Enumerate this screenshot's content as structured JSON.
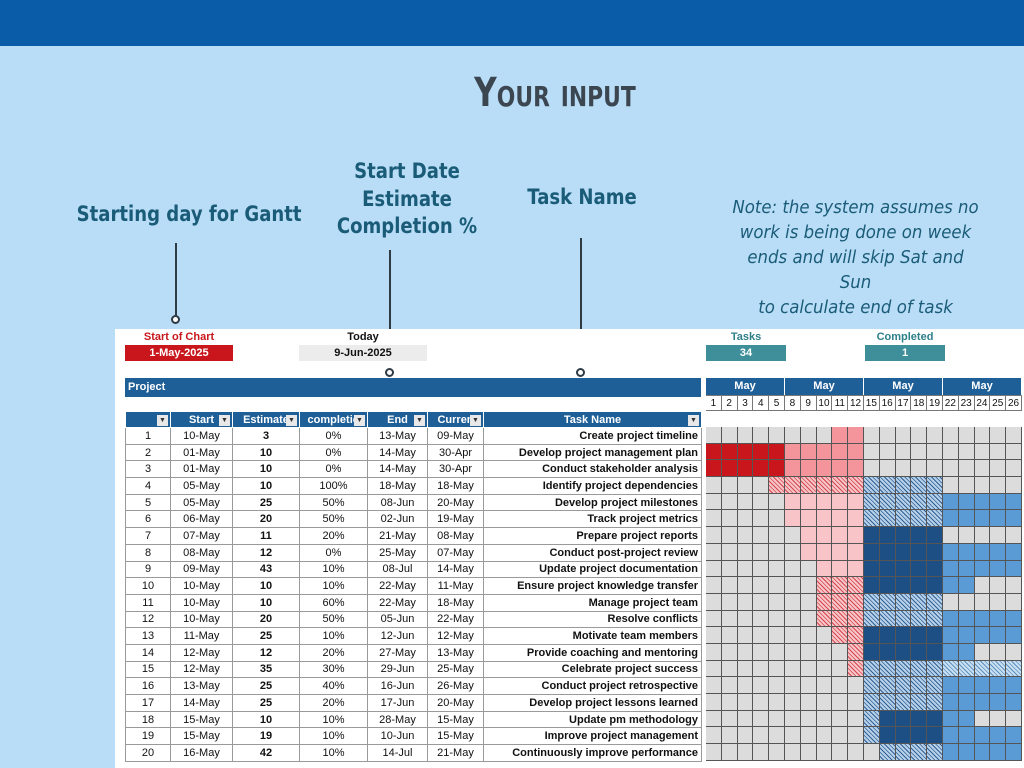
{
  "hero": {
    "title": "Your input"
  },
  "callouts": {
    "starting_day": "Starting day for Gantt",
    "start_date": "Start Date",
    "estimate": "Estimate",
    "completion": "Completion %",
    "task_name": "Task Name",
    "note_lines": [
      "Note: the system assumes no",
      "work is being done on week",
      "ends and will skip Sat and Sun",
      "to calculate end of task"
    ]
  },
  "sheet": {
    "start_of_chart_label": "Start of Chart",
    "start_of_chart_value": "1-May-2025",
    "today_label": "Today",
    "today_value": "9-Jun-2025",
    "tasks_label": "Tasks",
    "tasks_value": "34",
    "completed_label": "Completed",
    "completed_value": "1",
    "project_label": "Project",
    "columns": [
      "",
      "Start",
      "Estimate",
      "completio",
      "End",
      "Curren",
      "Task Name"
    ],
    "rows": [
      [
        "1",
        "10-May",
        "3",
        "0%",
        "13-May",
        "09-May",
        "Create project timeline"
      ],
      [
        "2",
        "01-May",
        "10",
        "0%",
        "14-May",
        "30-Apr",
        "Develop project management plan"
      ],
      [
        "3",
        "01-May",
        "10",
        "0%",
        "14-May",
        "30-Apr",
        "Conduct stakeholder analysis"
      ],
      [
        "4",
        "05-May",
        "10",
        "100%",
        "18-May",
        "18-May",
        "Identify project dependencies"
      ],
      [
        "5",
        "05-May",
        "25",
        "50%",
        "08-Jun",
        "20-May",
        "Develop project milestones"
      ],
      [
        "6",
        "06-May",
        "20",
        "50%",
        "02-Jun",
        "19-May",
        "Track project metrics"
      ],
      [
        "7",
        "07-May",
        "11",
        "20%",
        "21-May",
        "08-May",
        "Prepare project reports"
      ],
      [
        "8",
        "08-May",
        "12",
        "0%",
        "25-May",
        "07-May",
        "Conduct post-project review"
      ],
      [
        "9",
        "09-May",
        "43",
        "10%",
        "08-Jul",
        "14-May",
        "Update project documentation"
      ],
      [
        "10",
        "10-May",
        "10",
        "10%",
        "22-May",
        "11-May",
        "Ensure project knowledge transfer"
      ],
      [
        "11",
        "10-May",
        "10",
        "60%",
        "22-May",
        "18-May",
        "Manage project team"
      ],
      [
        "12",
        "10-May",
        "20",
        "50%",
        "05-Jun",
        "22-May",
        "Resolve conflicts"
      ],
      [
        "13",
        "11-May",
        "25",
        "10%",
        "12-Jun",
        "12-May",
        "Motivate team members"
      ],
      [
        "14",
        "12-May",
        "12",
        "20%",
        "27-May",
        "13-May",
        "Provide coaching and mentoring"
      ],
      [
        "15",
        "12-May",
        "35",
        "30%",
        "29-Jun",
        "25-May",
        "Celebrate project success"
      ],
      [
        "16",
        "13-May",
        "25",
        "40%",
        "16-Jun",
        "26-May",
        "Conduct project retrospective"
      ],
      [
        "17",
        "14-May",
        "25",
        "20%",
        "17-Jun",
        "20-May",
        "Develop project lessons learned"
      ],
      [
        "18",
        "15-May",
        "10",
        "10%",
        "28-May",
        "15-May",
        "Update pm methodology"
      ],
      [
        "19",
        "15-May",
        "19",
        "10%",
        "10-Jun",
        "15-May",
        "Improve project management"
      ],
      [
        "20",
        "16-May",
        "42",
        "10%",
        "14-Jul",
        "21-May",
        "Continuously improve performance"
      ]
    ],
    "gantt": {
      "months": [
        "May",
        "May",
        "May",
        "May"
      ],
      "days": [
        "1",
        "2",
        "3",
        "4",
        "5",
        "8",
        "9",
        "10",
        "11",
        "12",
        "15",
        "16",
        "17",
        "18",
        "19",
        "22",
        "23",
        "24",
        "25",
        "26"
      ],
      "rows": [
        "eeeeeeeePPeeeeeeeeee",
        "RRRRRPPPPPeeeeeeeeee",
        "RRRRRPPPPPeeeeeeeeee",
        "eeeeHHHHHHSSSSSeeeee",
        "eeeeeLLLLLSSSSSBBBBB",
        "eeeeeLLLLLSSSSSBBBBB",
        "eeeeeeLLLLNNNNNeeeee",
        "eeeeeeLLLLNNNNNBBBBB",
        "eeeeeeeLLLNNNNNBBBBB",
        "eeeeeeeHHHNNNNNBBeee",
        "eeeeeeeHHHSSSSSeeeee",
        "eeeeeeeHHHSSSSSBBBBB",
        "eeeeeeeeHHNNNNNBBBBB",
        "eeeeeeeeeHNNNNNBBeee",
        "eeeeeeeeeHSSSSSTTTTT",
        "eeeeeeeeeeSSSSSBBBBB",
        "eeeeeeeeeeSSSSSBBBBB",
        "eeeeeeeeeeSNNNNBBeee",
        "eeeeeeeeeeSNNNNBBBBB",
        "eeeeeeeeeeeSSSSBBBBB"
      ]
    }
  },
  "colors": {
    "top_bar": "#0a5ca8",
    "background": "#b9ddf7",
    "header_blue": "#1f5f97",
    "start_red": "#c8161c",
    "teal_box": "#3f8f9a",
    "accent_text": "#1a5c78"
  }
}
